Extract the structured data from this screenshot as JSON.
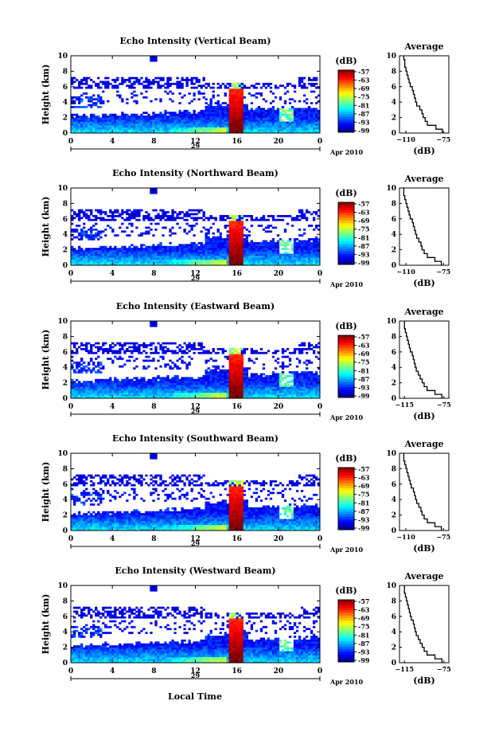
{
  "figure": {
    "xlabel": "Local Time",
    "date_label": "29",
    "month_label": "Apr 2010"
  },
  "chart_data": [
    {
      "type": "heatmap",
      "title": "Echo Intensity (Vertical Beam)",
      "ylabel": "Height (km)",
      "xticks": [
        "0",
        "4",
        "8",
        "12",
        "16",
        "20",
        "0"
      ],
      "yticks": [
        "0",
        "2",
        "4",
        "6",
        "8",
        "10"
      ],
      "xlim": [
        0,
        24
      ],
      "ylim": [
        0,
        10
      ],
      "colorbar": {
        "label": "(dB)",
        "ticks": [
          "-57",
          "-63",
          "-69",
          "-75",
          "-81",
          "-87",
          "-93",
          "-99"
        ]
      },
      "profile": {
        "title": "Average",
        "xlabel": "(dB)",
        "xticks": [
          "-110",
          "-75"
        ],
        "yticks": [
          "0",
          "2",
          "4",
          "6",
          "8",
          "10"
        ],
        "xlim": [
          -116,
          -70
        ],
        "ylim": [
          0,
          10
        ],
        "heights": [
          0,
          0.5,
          1,
          1.5,
          2,
          2.5,
          3,
          3.5,
          4,
          4.5,
          5,
          5.5,
          6,
          6.5,
          7,
          7.5,
          8,
          8.5,
          9,
          9.5
        ],
        "values": [
          -76,
          -82,
          -90,
          -92,
          -94,
          -95,
          -97,
          -100,
          -101,
          -102,
          -103,
          -104,
          -106,
          -107,
          -108,
          -109,
          -110,
          -111,
          -111,
          -112
        ]
      }
    },
    {
      "type": "heatmap",
      "title": "Echo Intensity (Northward Beam)",
      "ylabel": "Height (km)",
      "xticks": [
        "0",
        "4",
        "8",
        "12",
        "16",
        "20",
        "0"
      ],
      "yticks": [
        "0",
        "2",
        "4",
        "6",
        "8",
        "10"
      ],
      "xlim": [
        0,
        24
      ],
      "ylim": [
        0,
        10
      ],
      "colorbar": {
        "label": "(dB)",
        "ticks": [
          "-57",
          "-63",
          "-69",
          "-75",
          "-81",
          "-87",
          "-93",
          "-99"
        ]
      },
      "profile": {
        "title": "Average",
        "xlabel": "(dB)",
        "xticks": [
          "-110",
          "-75"
        ],
        "yticks": [
          "0",
          "2",
          "4",
          "6",
          "8",
          "10"
        ],
        "xlim": [
          -116,
          -70
        ],
        "ylim": [
          0,
          10
        ],
        "heights": [
          0,
          0.5,
          1,
          1.5,
          2,
          2.5,
          3,
          3.5,
          4,
          4.5,
          5,
          5.5,
          6,
          6.5,
          7,
          7.5,
          8,
          8.5,
          9,
          9.5
        ],
        "values": [
          -77,
          -83,
          -90,
          -93,
          -95,
          -96,
          -98,
          -100,
          -101,
          -102,
          -103,
          -104,
          -106,
          -107,
          -108,
          -109,
          -110,
          -111,
          -112,
          -112
        ]
      }
    },
    {
      "type": "heatmap",
      "title": "Echo Intensity (Eastward Beam)",
      "ylabel": "Height (km)",
      "xticks": [
        "0",
        "4",
        "8",
        "12",
        "16",
        "20",
        "0"
      ],
      "yticks": [
        "0",
        "2",
        "4",
        "6",
        "8",
        "10"
      ],
      "xlim": [
        0,
        24
      ],
      "ylim": [
        0,
        10
      ],
      "colorbar": {
        "label": "(dB)",
        "ticks": [
          "-57",
          "-63",
          "-69",
          "-75",
          "-81",
          "-87",
          "-93",
          "-99"
        ]
      },
      "profile": {
        "title": "Average",
        "xlabel": "(dB)",
        "xticks": [
          "-115",
          "-75"
        ],
        "yticks": [
          "0",
          "2",
          "4",
          "6",
          "8",
          "10"
        ],
        "xlim": [
          -120,
          -70
        ],
        "ylim": [
          0,
          10
        ],
        "heights": [
          0,
          0.5,
          1,
          1.5,
          2,
          2.5,
          3,
          3.5,
          4,
          4.5,
          5,
          5.5,
          6,
          6.5,
          7,
          7.5,
          8,
          8.5,
          9,
          9.5
        ],
        "values": [
          -77,
          -84,
          -92,
          -95,
          -97,
          -99,
          -101,
          -103,
          -104,
          -105,
          -106,
          -107,
          -109,
          -110,
          -111,
          -112,
          -113,
          -114,
          -115,
          -115
        ]
      }
    },
    {
      "type": "heatmap",
      "title": "Echo Intensity (Southward Beam)",
      "ylabel": "Height (km)",
      "xticks": [
        "0",
        "4",
        "8",
        "12",
        "16",
        "20",
        "0"
      ],
      "yticks": [
        "0",
        "2",
        "4",
        "6",
        "8",
        "10"
      ],
      "xlim": [
        0,
        24
      ],
      "ylim": [
        0,
        10
      ],
      "colorbar": {
        "label": "(dB)",
        "ticks": [
          "-57",
          "-63",
          "-69",
          "-75",
          "-81",
          "-87",
          "-93",
          "-99"
        ]
      },
      "profile": {
        "title": "Average",
        "xlabel": "(dB)",
        "xticks": [
          "-110",
          "-75"
        ],
        "yticks": [
          "0",
          "2",
          "4",
          "6",
          "8",
          "10"
        ],
        "xlim": [
          -116,
          -70
        ],
        "ylim": [
          0,
          10
        ],
        "heights": [
          0,
          0.5,
          1,
          1.5,
          2,
          2.5,
          3,
          3.5,
          4,
          4.5,
          5,
          5.5,
          6,
          6.5,
          7,
          7.5,
          8,
          8.5,
          9,
          9.5
        ],
        "values": [
          -77,
          -83,
          -90,
          -93,
          -95,
          -96,
          -98,
          -100,
          -101,
          -102,
          -103,
          -105,
          -106,
          -107,
          -108,
          -109,
          -110,
          -111,
          -112,
          -112
        ]
      }
    },
    {
      "type": "heatmap",
      "title": "Echo Intensity (Westward Beam)",
      "ylabel": "Height (km)",
      "xticks": [
        "0",
        "4",
        "8",
        "12",
        "16",
        "20",
        "0"
      ],
      "yticks": [
        "0",
        "2",
        "4",
        "6",
        "8",
        "10"
      ],
      "xlim": [
        0,
        24
      ],
      "ylim": [
        0,
        10
      ],
      "colorbar": {
        "label": "(dB)",
        "ticks": [
          "-57",
          "-63",
          "-69",
          "-75",
          "-81",
          "-87",
          "-93",
          "-99"
        ]
      },
      "profile": {
        "title": "Average",
        "xlabel": "(dB)",
        "xticks": [
          "-115",
          "-75"
        ],
        "yticks": [
          "0",
          "2",
          "4",
          "6",
          "8",
          "10"
        ],
        "xlim": [
          -120,
          -70
        ],
        "ylim": [
          0,
          10
        ],
        "heights": [
          0,
          0.5,
          1,
          1.5,
          2,
          2.5,
          3,
          3.5,
          4,
          4.5,
          5,
          5.5,
          6,
          6.5,
          7,
          7.5,
          8,
          8.5,
          9,
          9.5
        ],
        "values": [
          -77,
          -84,
          -92,
          -95,
          -97,
          -99,
          -101,
          -103,
          -104,
          -105,
          -106,
          -108,
          -109,
          -110,
          -111,
          -112,
          -113,
          -114,
          -115,
          -115
        ]
      }
    }
  ]
}
